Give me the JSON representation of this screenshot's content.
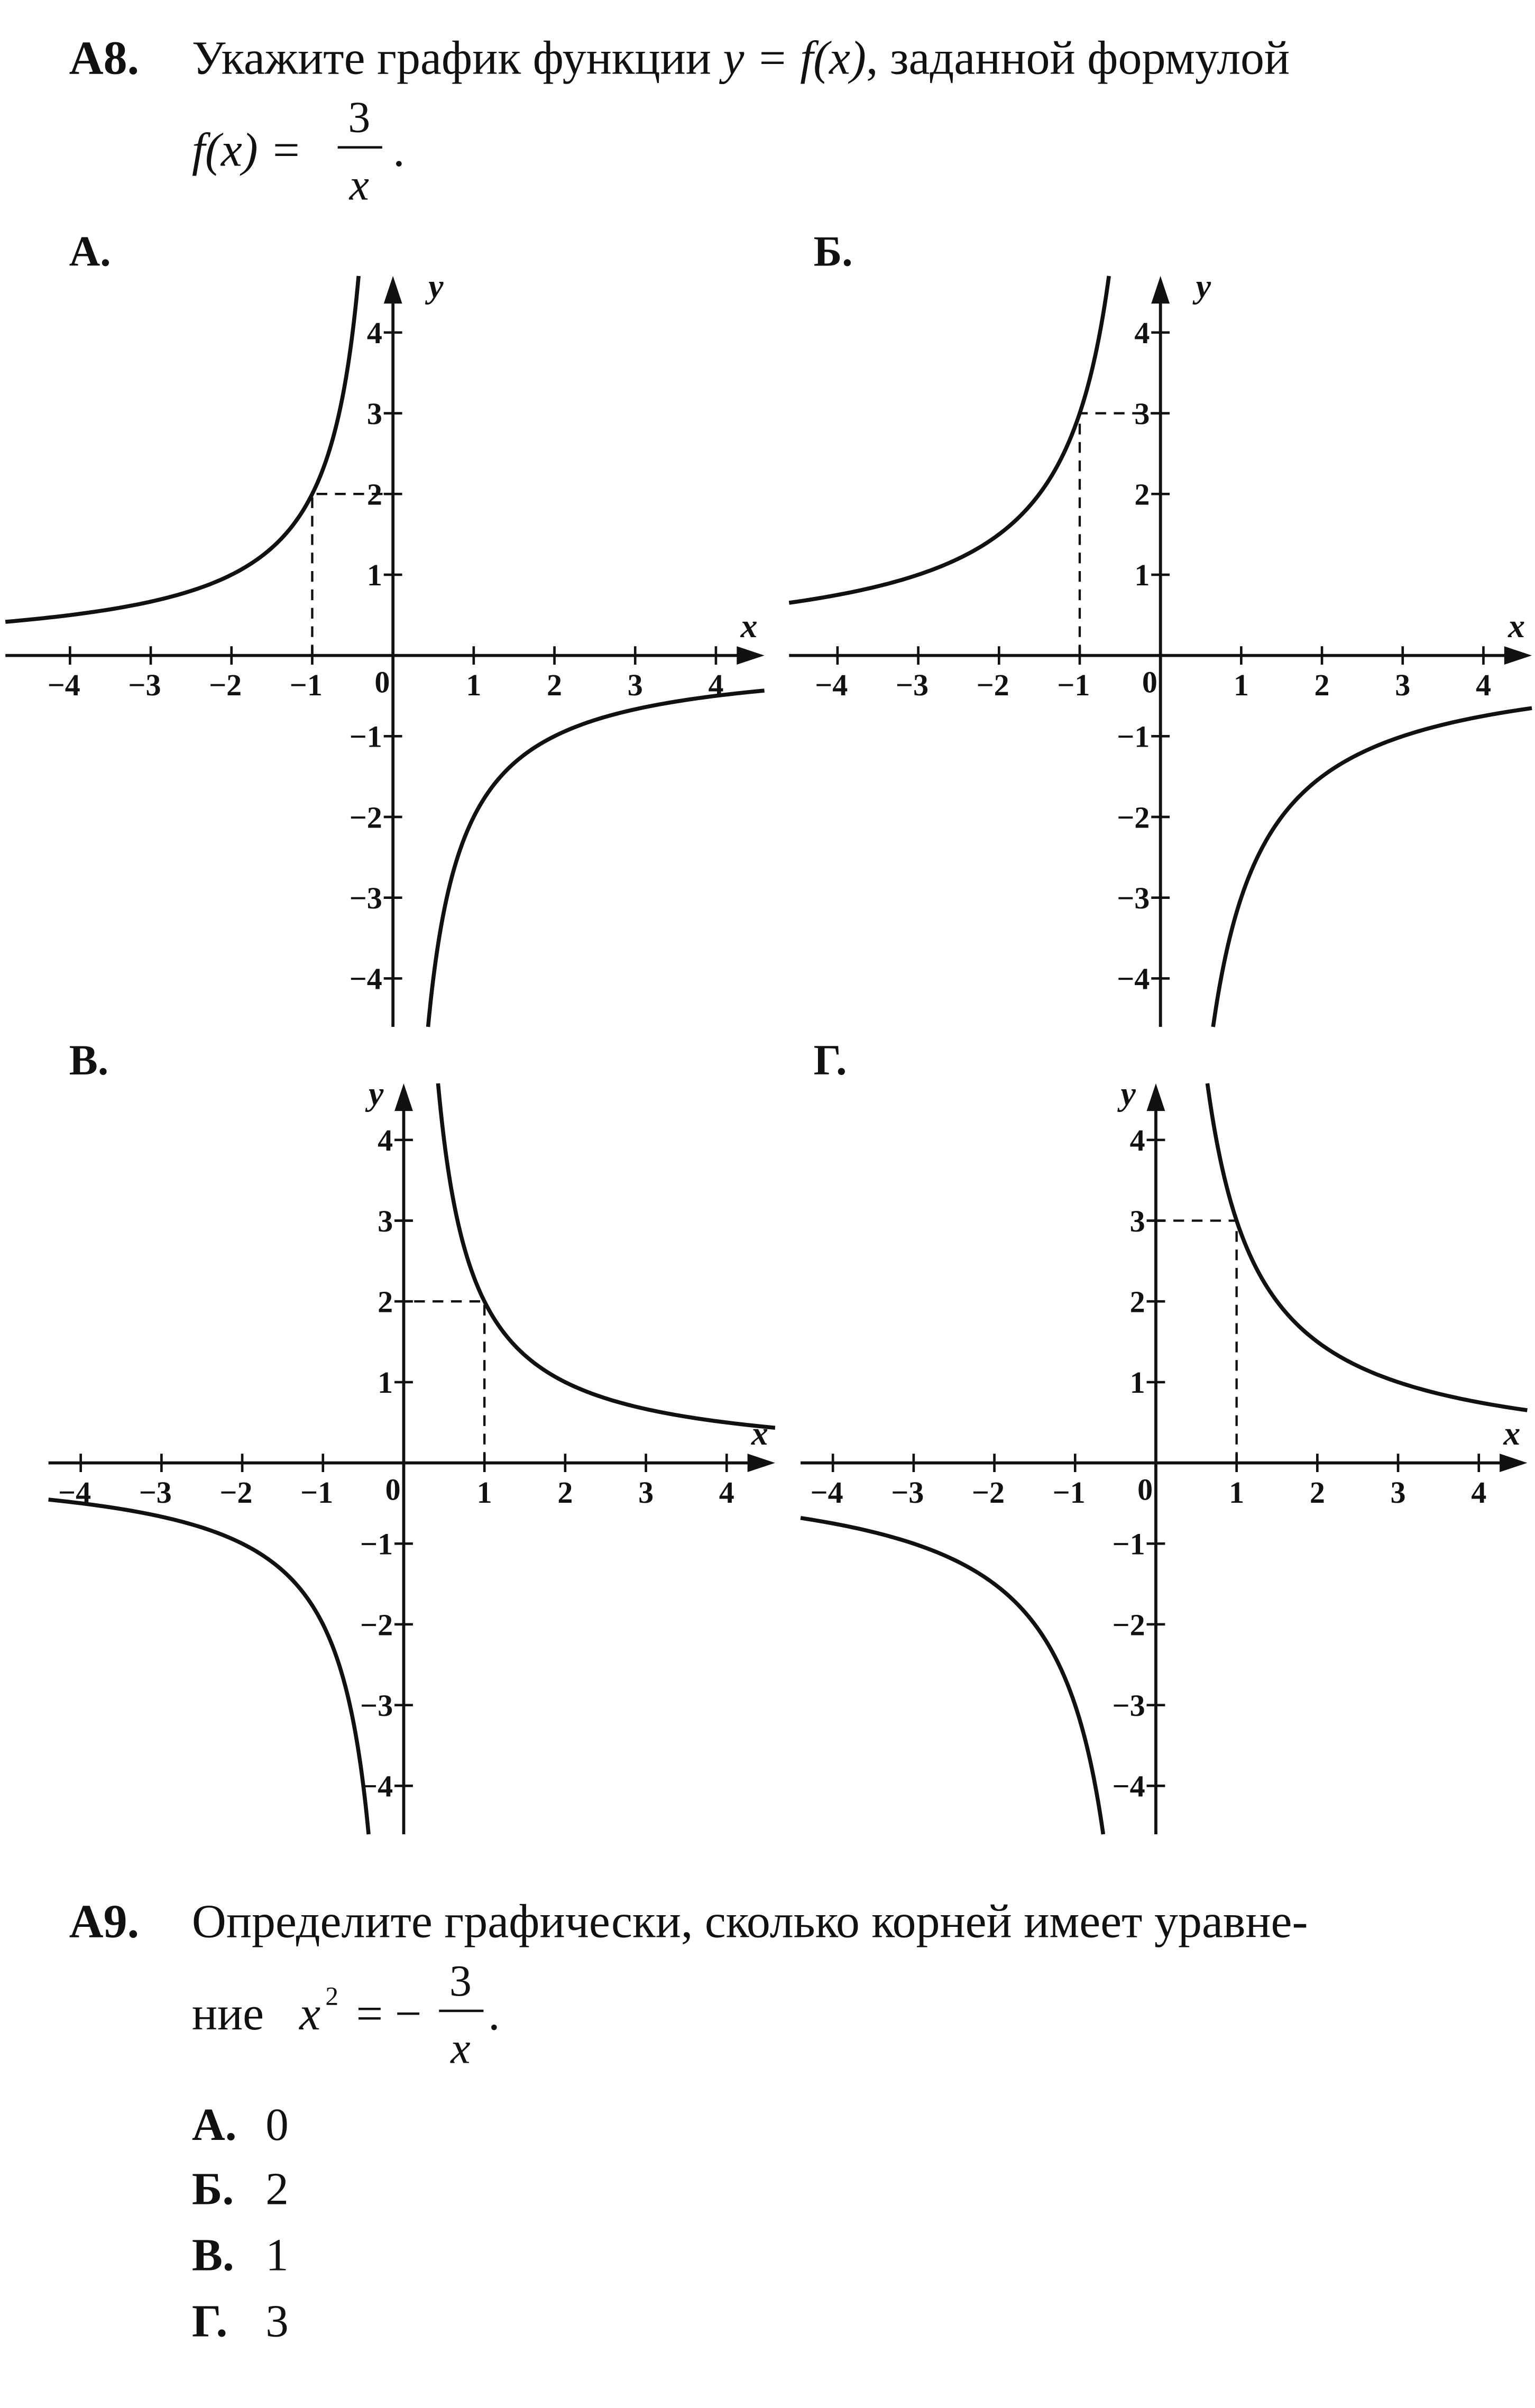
{
  "problems": [
    {
      "number": "A8.",
      "text_parts": [
        {
          "t": "Укажите график функции "
        },
        {
          "t": "y = f(x)",
          "italic": true
        },
        {
          "t": ", заданной формулой"
        }
      ],
      "formula": {
        "lhs": "f(x) =",
        "numerator": "3",
        "denominator": "x",
        "tail": "."
      },
      "graphs": [
        {
          "label": "А.",
          "x_label": "x",
          "y_label": "y",
          "origin_label": "0",
          "xlim": [
            -4.8,
            4.6
          ],
          "ylim": [
            -4.6,
            4.7
          ],
          "xticks": [
            {
              "value": -4,
              "label": "−4"
            },
            {
              "value": -3,
              "label": "−3"
            },
            {
              "value": -2,
              "label": "−2"
            },
            {
              "value": -1,
              "label": "−1"
            },
            1,
            2,
            3,
            4
          ],
          "yticks": [
            {
              "value": -4,
              "label": "−4"
            },
            {
              "value": -3,
              "label": "−3"
            },
            {
              "value": -2,
              "label": "−2"
            },
            {
              "value": -1,
              "label": "−1"
            },
            1,
            2,
            3,
            4
          ],
          "marked_point": {
            "x": -1,
            "y": 2
          }
        },
        {
          "label": "Б.",
          "x_label": "x",
          "y_label": "y",
          "origin_label": "0",
          "xlim": [
            -4.6,
            4.6
          ],
          "ylim": [
            -4.6,
            4.7
          ],
          "xticks": [
            {
              "value": -4,
              "label": "−4"
            },
            {
              "value": -3,
              "label": "−3"
            },
            {
              "value": -2,
              "label": "−2"
            },
            {
              "value": -1,
              "label": "−1"
            },
            1,
            2,
            3,
            4
          ],
          "yticks": [
            {
              "value": -4,
              "label": "−4"
            },
            {
              "value": -3,
              "label": "−3"
            },
            {
              "value": -2,
              "label": "−2"
            },
            {
              "value": -1,
              "label": "−1"
            },
            1,
            2,
            3,
            4
          ],
          "marked_point": {
            "x": -1,
            "y": 3
          }
        },
        {
          "label": "В.",
          "x_label": "x",
          "y_label": "y",
          "origin_label": "0",
          "xlim": [
            -4.4,
            4.6
          ],
          "ylim": [
            -4.6,
            4.7
          ],
          "xticks": [
            {
              "value": -4,
              "label": "−4"
            },
            {
              "value": -3,
              "label": "−3"
            },
            {
              "value": -2,
              "label": "−2"
            },
            {
              "value": -1,
              "label": "−1"
            },
            1,
            2,
            3,
            4
          ],
          "yticks": [
            {
              "value": -4,
              "label": "−4"
            },
            {
              "value": -3,
              "label": "−3"
            },
            {
              "value": -2,
              "label": "−2"
            },
            {
              "value": -1,
              "label": "−1"
            },
            1,
            2,
            3,
            4
          ],
          "marked_point": {
            "x": 1,
            "y": 2
          }
        },
        {
          "label": "Г.",
          "x_label": "x",
          "y_label": "y",
          "origin_label": "0",
          "xlim": [
            -4.4,
            4.6
          ],
          "ylim": [
            -4.6,
            4.7
          ],
          "xticks": [
            {
              "value": -4,
              "label": "−4"
            },
            {
              "value": -3,
              "label": "−3"
            },
            {
              "value": -2,
              "label": "−2"
            },
            {
              "value": -1,
              "label": "−1"
            },
            1,
            2,
            3,
            4
          ],
          "yticks": [
            {
              "value": -4,
              "label": "−4"
            },
            {
              "value": -3,
              "label": "−3"
            },
            {
              "value": -2,
              "label": "−2"
            },
            {
              "value": -1,
              "label": "−1"
            },
            1,
            2,
            3,
            4
          ],
          "marked_point": {
            "x": 1,
            "y": 3
          }
        }
      ]
    },
    {
      "number": "A9.",
      "text": "Определите графически, сколько корней имеет уравне-",
      "text2": "ние",
      "formula": {
        "lhs": "x",
        "exp": "2",
        "eq": "= −",
        "numerator": "3",
        "denominator": "x",
        "tail": "."
      },
      "options": [
        {
          "label": "А.",
          "value": "0"
        },
        {
          "label": "Б.",
          "value": "2"
        },
        {
          "label": "В.",
          "value": "1"
        },
        {
          "label": "Г.",
          "value": "3"
        }
      ]
    }
  ]
}
